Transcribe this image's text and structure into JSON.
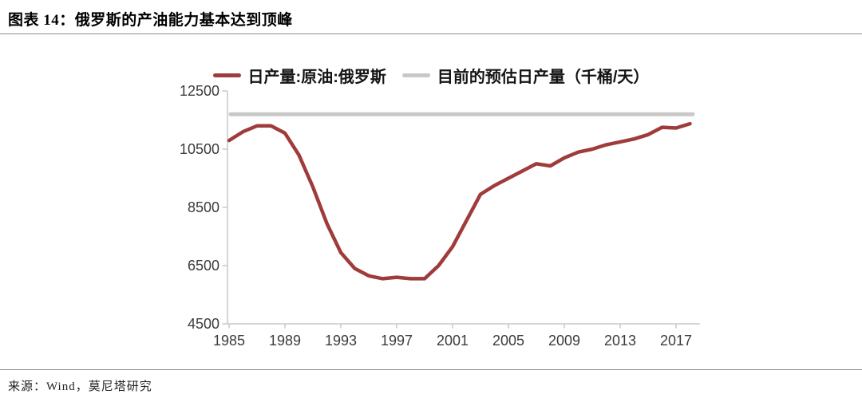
{
  "header": {
    "title": "图表 14：俄罗斯的产油能力基本达到顶峰"
  },
  "legend": {
    "items": [
      {
        "label": "日产量:原油:俄罗斯",
        "color": "#A03B3B"
      },
      {
        "label": "目前的预估日产量（千桶/天）",
        "color": "#C8C8C8"
      }
    ]
  },
  "chart_data": {
    "type": "line",
    "title": "俄罗斯的产油能力基本达到顶峰",
    "xlabel": "",
    "ylabel": "千桶/天",
    "unit": "千桶/天",
    "ylim": [
      4500,
      12500
    ],
    "y_ticks": [
      4500,
      6500,
      8500,
      10500,
      12500
    ],
    "x_ticks": [
      1985,
      1989,
      1993,
      1997,
      2001,
      2005,
      2009,
      2013,
      2017
    ],
    "grid": false,
    "legend_position": "top",
    "x": [
      1985,
      1986,
      1987,
      1988,
      1989,
      1990,
      1991,
      1992,
      1993,
      1994,
      1995,
      1996,
      1997,
      1998,
      1999,
      2000,
      2001,
      2002,
      2003,
      2004,
      2005,
      2006,
      2007,
      2008,
      2009,
      2010,
      2011,
      2012,
      2013,
      2014,
      2015,
      2016,
      2017,
      2018
    ],
    "series": [
      {
        "name": "日产量:原油:俄罗斯",
        "color": "#A03B3B",
        "values": [
          10800,
          11100,
          11300,
          11300,
          11050,
          10300,
          9200,
          7950,
          6950,
          6400,
          6150,
          6050,
          6100,
          6050,
          6050,
          6500,
          7150,
          8050,
          8950,
          9250,
          9500,
          9750,
          10000,
          9925,
          10200,
          10400,
          10500,
          10650,
          10750,
          10850,
          11000,
          11250,
          11225,
          11375
        ]
      },
      {
        "name": "目前的预估日产量（千桶/天）",
        "color": "#C8C8C8",
        "style": "reference_line",
        "value": 11700
      }
    ]
  },
  "footer": {
    "source": "来源：Wind，莫尼塔研究"
  },
  "colors": {
    "series_red": "#A03B3B",
    "reference_gray": "#C8C8C8",
    "axis_line": "#C9C9C9",
    "tick_text": "#3C3C3C",
    "divider": "#8C8C8C"
  }
}
